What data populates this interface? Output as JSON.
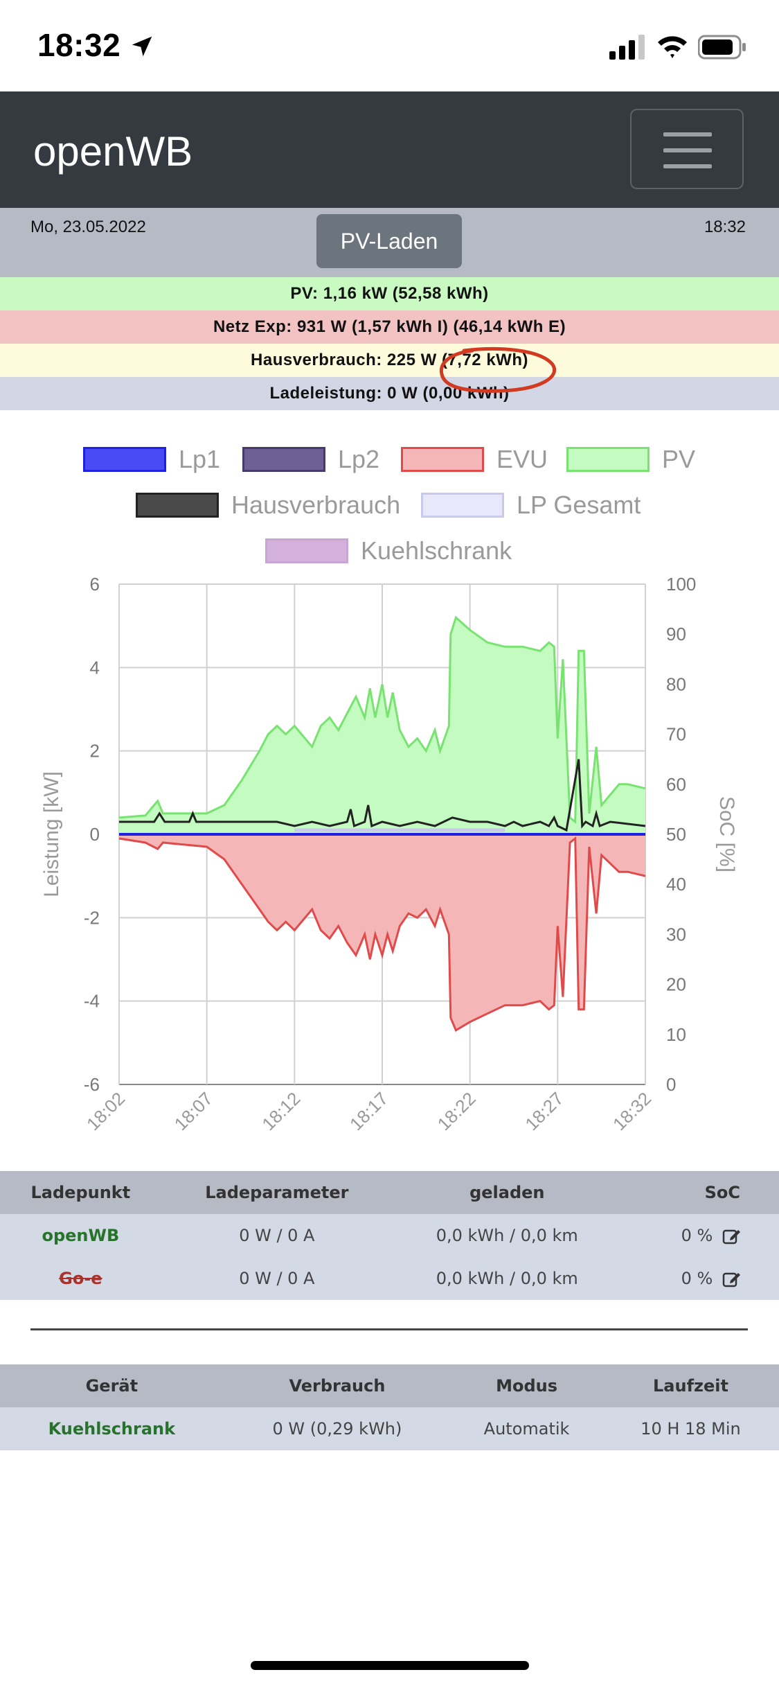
{
  "status_bar": {
    "time": "18:32"
  },
  "navbar": {
    "brand": "openWB"
  },
  "info": {
    "date": "Mo, 23.05.2022",
    "time": "18:32",
    "mode": "PV-Laden"
  },
  "summary": {
    "pv": "PV: 1,16 kW (52,58 kWh)",
    "net": "Netz Exp: 931 W (1,57 kWh I) (46,14 kWh E)",
    "house": "Hausverbrauch: 225 W (7,72 kWh)",
    "charge": "Ladeleistung: 0 W (0,00 kWh)"
  },
  "legend": [
    {
      "name": "Lp1",
      "fill": "#4b4bf5",
      "border": "#2020e0"
    },
    {
      "name": "Lp2",
      "fill": "#6f5f94",
      "border": "#463a6c"
    },
    {
      "name": "EVU",
      "fill": "#f4b6b6",
      "border": "#e04a4a"
    },
    {
      "name": "PV",
      "fill": "#c3fbc0",
      "border": "#78e370"
    },
    {
      "name": "Hausverbrauch",
      "fill": "#4a4a4a",
      "border": "#222222"
    },
    {
      "name": "LP Gesamt",
      "fill": "#e8e8fa",
      "border": "#c9c9ec"
    },
    {
      "name": "Kuehlschrank",
      "fill": "#d4b1dc",
      "border": "#c8a5d2"
    }
  ],
  "chart_data": {
    "type": "area",
    "xlabel": "",
    "ylabel": "Leistung [kW]",
    "y2label": "SoC [%]",
    "ylim": [
      -6,
      6
    ],
    "y2lim": [
      0,
      100
    ],
    "yticks": [
      "6",
      "4",
      "2",
      "0",
      "-2",
      "-4",
      "-6"
    ],
    "y2ticks": [
      "100",
      "90",
      "80",
      "70",
      "60",
      "50",
      "40",
      "30",
      "20",
      "10",
      "0"
    ],
    "xticks": [
      "18:02",
      "18:07",
      "18:12",
      "18:17",
      "18:22",
      "18:27",
      "18:32"
    ],
    "x_range_min": [
      0,
      30
    ],
    "grid": true,
    "legend_position": "top",
    "series": [
      {
        "name": "PV",
        "color": "#78e370",
        "fill": "#c3fbc0",
        "points": [
          [
            0,
            0.4
          ],
          [
            1.5,
            0.45
          ],
          [
            2.2,
            0.8
          ],
          [
            2.5,
            0.5
          ],
          [
            5,
            0.5
          ],
          [
            6,
            0.7
          ],
          [
            7,
            1.3
          ],
          [
            8,
            2.0
          ],
          [
            8.5,
            2.4
          ],
          [
            9,
            2.6
          ],
          [
            9.5,
            2.4
          ],
          [
            10,
            2.6
          ],
          [
            11,
            2.1
          ],
          [
            11.5,
            2.6
          ],
          [
            12,
            2.8
          ],
          [
            12.5,
            2.5
          ],
          [
            13,
            2.9
          ],
          [
            13.5,
            3.3
          ],
          [
            14,
            2.8
          ],
          [
            14.3,
            3.5
          ],
          [
            14.6,
            2.8
          ],
          [
            15,
            3.6
          ],
          [
            15.3,
            2.8
          ],
          [
            15.6,
            3.4
          ],
          [
            16,
            2.5
          ],
          [
            16.5,
            2.1
          ],
          [
            17,
            2.3
          ],
          [
            17.5,
            2.0
          ],
          [
            18,
            2.5
          ],
          [
            18.3,
            2.0
          ],
          [
            18.8,
            2.6
          ],
          [
            18.9,
            4.8
          ],
          [
            19.2,
            5.2
          ],
          [
            20,
            4.9
          ],
          [
            21,
            4.6
          ],
          [
            22,
            4.5
          ],
          [
            23,
            4.5
          ],
          [
            24,
            4.4
          ],
          [
            24.5,
            4.6
          ],
          [
            24.8,
            4.5
          ],
          [
            25,
            2.3
          ],
          [
            25.3,
            4.2
          ],
          [
            25.7,
            0.4
          ],
          [
            26,
            0.3
          ],
          [
            26.2,
            4.4
          ],
          [
            26.5,
            4.4
          ],
          [
            26.8,
            0.5
          ],
          [
            27.2,
            2.1
          ],
          [
            27.5,
            0.7
          ],
          [
            28.5,
            1.2
          ],
          [
            29,
            1.2
          ],
          [
            30,
            1.1
          ]
        ]
      },
      {
        "name": "EVU",
        "color": "#e04a4a",
        "fill": "#f4b6b6",
        "points": [
          [
            0,
            -0.1
          ],
          [
            1.5,
            -0.2
          ],
          [
            2.2,
            -0.35
          ],
          [
            2.5,
            -0.2
          ],
          [
            5,
            -0.3
          ],
          [
            6,
            -0.6
          ],
          [
            7,
            -1.2
          ],
          [
            8,
            -1.8
          ],
          [
            8.5,
            -2.1
          ],
          [
            9,
            -2.3
          ],
          [
            9.5,
            -2.1
          ],
          [
            10,
            -2.3
          ],
          [
            11,
            -1.8
          ],
          [
            11.5,
            -2.3
          ],
          [
            12,
            -2.5
          ],
          [
            12.5,
            -2.2
          ],
          [
            13,
            -2.6
          ],
          [
            13.5,
            -2.9
          ],
          [
            14,
            -2.4
          ],
          [
            14.3,
            -3.0
          ],
          [
            14.6,
            -2.4
          ],
          [
            15,
            -2.9
          ],
          [
            15.3,
            -2.4
          ],
          [
            15.6,
            -2.8
          ],
          [
            16,
            -2.2
          ],
          [
            16.5,
            -1.9
          ],
          [
            17,
            -2.0
          ],
          [
            17.5,
            -1.8
          ],
          [
            18,
            -2.2
          ],
          [
            18.3,
            -1.8
          ],
          [
            18.8,
            -2.4
          ],
          [
            18.9,
            -4.4
          ],
          [
            19.2,
            -4.7
          ],
          [
            20,
            -4.5
          ],
          [
            21,
            -4.3
          ],
          [
            22,
            -4.1
          ],
          [
            23,
            -4.1
          ],
          [
            24,
            -4.0
          ],
          [
            24.5,
            -4.2
          ],
          [
            24.8,
            -4.1
          ],
          [
            25,
            -2.2
          ],
          [
            25.3,
            -3.9
          ],
          [
            25.7,
            -0.2
          ],
          [
            26,
            -0.1
          ],
          [
            26.2,
            -4.2
          ],
          [
            26.5,
            -4.2
          ],
          [
            26.8,
            -0.3
          ],
          [
            27.2,
            -1.9
          ],
          [
            27.5,
            -0.5
          ],
          [
            28.5,
            -0.9
          ],
          [
            29,
            -0.9
          ],
          [
            30,
            -1.0
          ]
        ]
      },
      {
        "name": "Hausverbrauch",
        "color": "#222222",
        "points": [
          [
            0,
            0.3
          ],
          [
            2,
            0.3
          ],
          [
            2.3,
            0.5
          ],
          [
            2.6,
            0.3
          ],
          [
            4,
            0.3
          ],
          [
            4.2,
            0.5
          ],
          [
            4.4,
            0.3
          ],
          [
            9,
            0.3
          ],
          [
            10,
            0.2
          ],
          [
            11,
            0.3
          ],
          [
            12,
            0.2
          ],
          [
            13,
            0.3
          ],
          [
            13.2,
            0.6
          ],
          [
            13.4,
            0.2
          ],
          [
            14,
            0.3
          ],
          [
            14.2,
            0.7
          ],
          [
            14.4,
            0.2
          ],
          [
            15,
            0.3
          ],
          [
            16,
            0.2
          ],
          [
            17,
            0.3
          ],
          [
            18,
            0.2
          ],
          [
            19,
            0.4
          ],
          [
            20,
            0.3
          ],
          [
            21,
            0.3
          ],
          [
            22,
            0.2
          ],
          [
            22.5,
            0.3
          ],
          [
            23,
            0.2
          ],
          [
            24,
            0.3
          ],
          [
            24.5,
            0.2
          ],
          [
            24.8,
            0.4
          ],
          [
            25,
            0.2
          ],
          [
            25.5,
            0.1
          ],
          [
            26.2,
            1.8
          ],
          [
            26.4,
            0.2
          ],
          [
            26.6,
            0.3
          ],
          [
            27,
            0.2
          ],
          [
            27.2,
            0.5
          ],
          [
            27.4,
            0.2
          ],
          [
            28,
            0.3
          ],
          [
            30,
            0.2
          ]
        ]
      },
      {
        "name": "LP Gesamt",
        "color": "#c9c9ec",
        "points": [
          [
            10,
            0.1
          ],
          [
            22,
            0.1
          ]
        ]
      },
      {
        "name": "Lp1",
        "color": "#2020e0",
        "points": [
          [
            0,
            0.0
          ],
          [
            30,
            0.0
          ]
        ]
      }
    ]
  },
  "chargepoints": {
    "headers": [
      "Ladepunkt",
      "Ladeparameter",
      "geladen",
      "SoC"
    ],
    "rows": [
      {
        "name": "openWB",
        "param": "0 W / 0 A",
        "charged": "0,0 kWh / 0,0 km",
        "soc": "0 %",
        "style": "green"
      },
      {
        "name": "Go-e",
        "param": "0 W / 0 A",
        "charged": "0,0 kWh / 0,0 km",
        "soc": "0 %",
        "style": "red-strike"
      }
    ]
  },
  "devices": {
    "headers": [
      "Gerät",
      "Verbrauch",
      "Modus",
      "Laufzeit"
    ],
    "rows": [
      {
        "name": "Kuehlschrank",
        "consumption": "0 W (0,29 kWh)",
        "mode": "Automatik",
        "runtime": "10 H 18 Min"
      }
    ]
  }
}
